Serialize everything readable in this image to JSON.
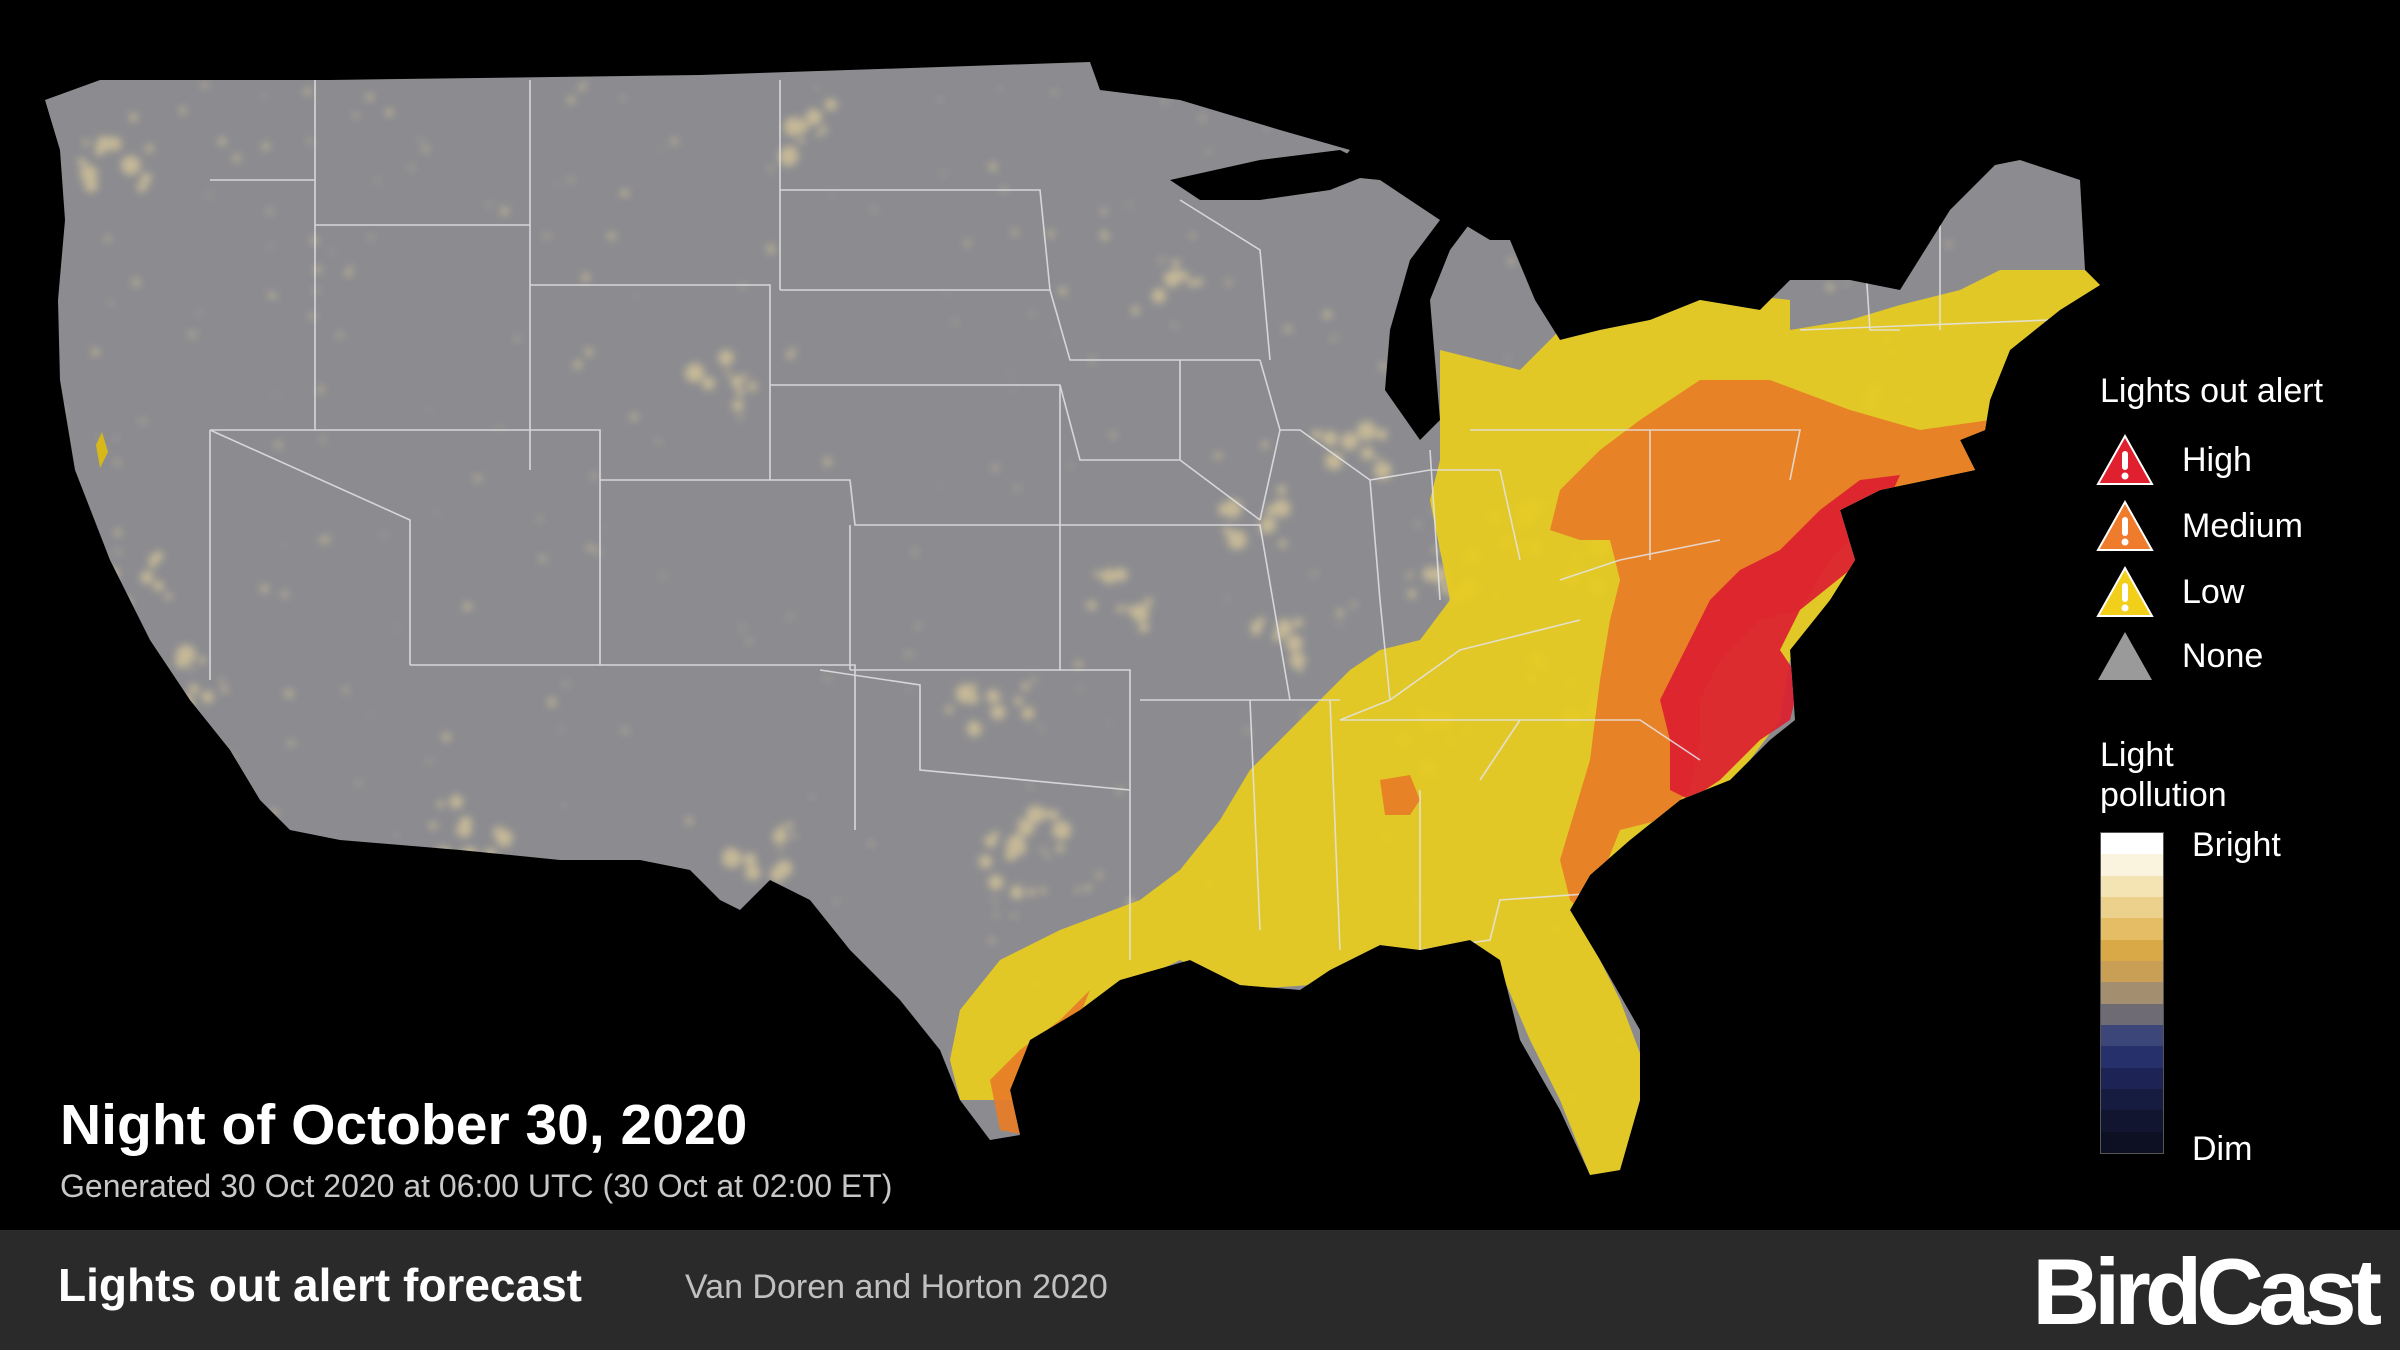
{
  "map": {
    "region": "Contiguous United States",
    "base_color": "#8c8c90",
    "city_light_color": "#d8c79a"
  },
  "alert_zones": [
    {
      "level": "Low",
      "color": "#e8cc1e"
    },
    {
      "level": "Medium",
      "color": "#e87c26"
    },
    {
      "level": "High",
      "color": "#dc1e30"
    }
  ],
  "legend": {
    "title": "Lights out alert",
    "items": [
      {
        "label": "High",
        "color": "#e0202f",
        "icon": "warning-icon"
      },
      {
        "label": "Medium",
        "color": "#ef7b2d",
        "icon": "warning-icon"
      },
      {
        "label": "Low",
        "color": "#f2cf1b",
        "icon": "warning-icon"
      },
      {
        "label": "None",
        "color": "#9a9a9a",
        "icon": "triangle-icon"
      }
    ],
    "light_pollution": {
      "title": "Light pollution",
      "high_label": "Bright",
      "low_label": "Dim",
      "colors": [
        "#ffffff",
        "#faf3de",
        "#f4e4b4",
        "#ecd18c",
        "#e4bd64",
        "#d9a948",
        "#c99f56",
        "#a38f6f",
        "#6f6b74",
        "#3d4678",
        "#26306a",
        "#1d2455",
        "#161b40",
        "#11152f",
        "#0c1022"
      ]
    }
  },
  "heading": {
    "night": "Night of October 30, 2020",
    "generated": "Generated 30 Oct 2020 at 06:00 UTC (30 Oct at 02:00 ET)"
  },
  "footer": {
    "title": "Lights out alert forecast",
    "credit": "Van Doren and Horton 2020",
    "brand": "BirdCast"
  }
}
